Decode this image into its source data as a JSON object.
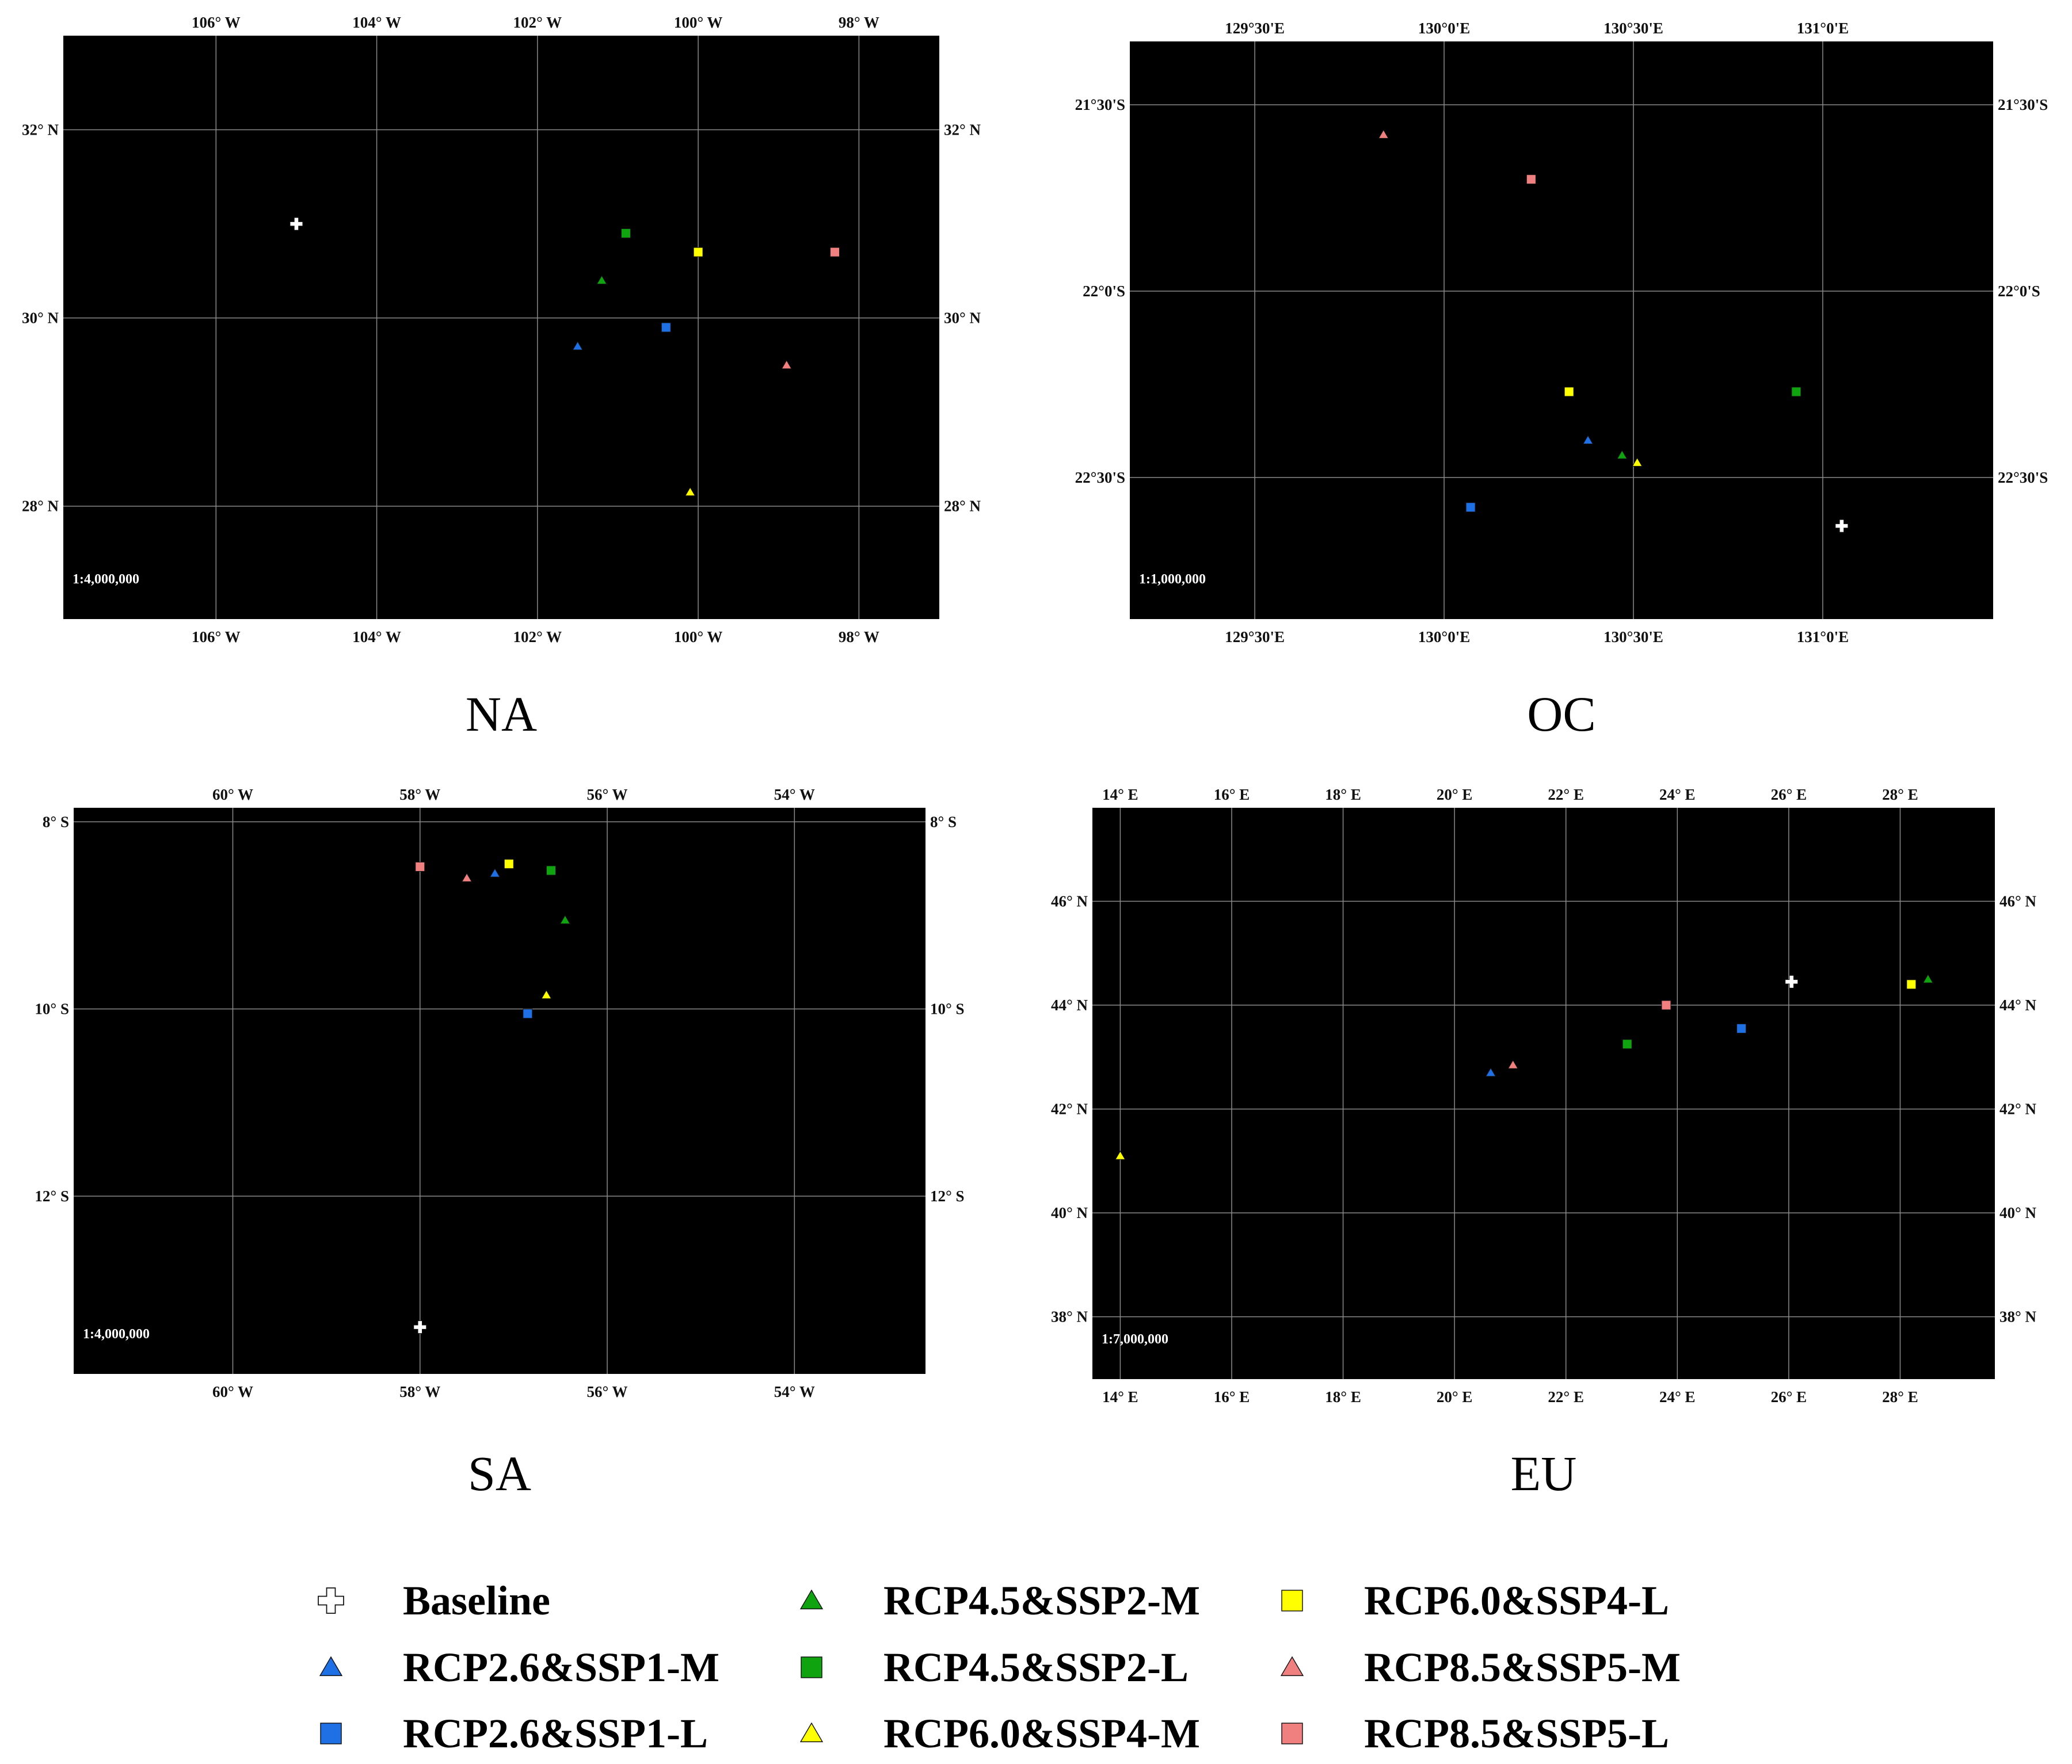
{
  "colors": {
    "Baseline": "#ffffff",
    "RCP2.6&SSP1-M": "#1f6fe5",
    "RCP2.6&SSP1-L": "#1f6fe5",
    "RCP4.5&SSP2-M": "#0fa30f",
    "RCP4.5&SSP2-L": "#0fa30f",
    "RCP6.0&SSP4-M": "#ffff00",
    "RCP6.0&SSP4-L": "#ffff00",
    "RCP8.5&SSP5-M": "#f08080",
    "RCP8.5&SSP5-L": "#f08080"
  },
  "legend": [
    {
      "label": "Baseline",
      "marker": "cross"
    },
    {
      "label": "RCP4.5&SSP2-M",
      "marker": "triangle"
    },
    {
      "label": "RCP6.0&SSP4-L",
      "marker": "square"
    },
    {
      "label": "RCP2.6&SSP1-M",
      "marker": "triangle"
    },
    {
      "label": "RCP4.5&SSP2-L",
      "marker": "square"
    },
    {
      "label": "RCP8.5&SSP5-M",
      "marker": "triangle"
    },
    {
      "label": "RCP2.6&SSP1-L",
      "marker": "square"
    },
    {
      "label": "RCP6.0&SSP4-M",
      "marker": "triangle"
    },
    {
      "label": "RCP8.5&SSP5-L",
      "marker": "square"
    }
  ],
  "chart_data": [
    {
      "type": "scatter",
      "title": "NA",
      "scale_text": "1:4,000,000",
      "background": "#000000",
      "grid": true,
      "xlim": [
        -107.9,
        -97.0
      ],
      "ylim": [
        26.8,
        33.0
      ],
      "xticks": [
        -106,
        -104,
        -102,
        -100,
        -98
      ],
      "xtick_labels": [
        "106° W",
        "104° W",
        "102° W",
        "100° W",
        "98° W"
      ],
      "yticks": [
        28,
        30,
        32
      ],
      "ytick_labels": [
        "28° N",
        "30° N",
        "32° N"
      ],
      "series": [
        {
          "name": "Baseline",
          "marker": "cross",
          "points": [
            [
              -105.0,
              31.0
            ]
          ]
        },
        {
          "name": "RCP2.6&SSP1-M",
          "marker": "triangle",
          "points": [
            [
              -101.5,
              29.7
            ]
          ]
        },
        {
          "name": "RCP2.6&SSP1-L",
          "marker": "square",
          "points": [
            [
              -100.4,
              29.9
            ]
          ]
        },
        {
          "name": "RCP4.5&SSP2-M",
          "marker": "triangle",
          "points": [
            [
              -101.2,
              30.4
            ]
          ]
        },
        {
          "name": "RCP4.5&SSP2-L",
          "marker": "square",
          "points": [
            [
              -100.9,
              30.9
            ]
          ]
        },
        {
          "name": "RCP6.0&SSP4-M",
          "marker": "triangle",
          "points": [
            [
              -100.1,
              28.15
            ]
          ]
        },
        {
          "name": "RCP6.0&SSP4-L",
          "marker": "square",
          "points": [
            [
              -100.0,
              30.7
            ]
          ]
        },
        {
          "name": "RCP8.5&SSP5-M",
          "marker": "triangle",
          "points": [
            [
              -98.9,
              29.5
            ]
          ]
        },
        {
          "name": "RCP8.5&SSP5-L",
          "marker": "square",
          "points": [
            [
              -98.3,
              30.7
            ]
          ]
        }
      ]
    },
    {
      "type": "scatter",
      "title": "OC",
      "scale_text": "1:1,000,000",
      "background": "#000000",
      "grid": true,
      "xlim": [
        129.17,
        131.45
      ],
      "ylim": [
        -22.88,
        -21.33
      ],
      "xticks": [
        129.5,
        130.0,
        130.5,
        131.0
      ],
      "xtick_labels": [
        "129°30'E",
        "130°0'E",
        "130°30'E",
        "131°0'E"
      ],
      "yticks": [
        -22.5,
        -22.0,
        -21.5
      ],
      "ytick_labels": [
        "22°30'S",
        "22°0'S",
        "21°30'S"
      ],
      "series": [
        {
          "name": "Baseline",
          "marker": "cross",
          "points": [
            [
              131.05,
              -22.63
            ]
          ]
        },
        {
          "name": "RCP2.6&SSP1-M",
          "marker": "triangle",
          "points": [
            [
              130.38,
              -22.4
            ]
          ]
        },
        {
          "name": "RCP2.6&SSP1-L",
          "marker": "square",
          "points": [
            [
              130.07,
              -22.58
            ]
          ]
        },
        {
          "name": "RCP4.5&SSP2-M",
          "marker": "triangle",
          "points": [
            [
              130.47,
              -22.44
            ]
          ]
        },
        {
          "name": "RCP4.5&SSP2-L",
          "marker": "square",
          "points": [
            [
              130.93,
              -22.27
            ]
          ]
        },
        {
          "name": "RCP6.0&SSP4-M",
          "marker": "triangle",
          "points": [
            [
              130.51,
              -22.46
            ]
          ]
        },
        {
          "name": "RCP6.0&SSP4-L",
          "marker": "square",
          "points": [
            [
              130.33,
              -22.27
            ]
          ]
        },
        {
          "name": "RCP8.5&SSP5-M",
          "marker": "triangle",
          "points": [
            [
              129.84,
              -21.58
            ]
          ]
        },
        {
          "name": "RCP8.5&SSP5-L",
          "marker": "square",
          "points": [
            [
              130.23,
              -21.7
            ]
          ]
        }
      ]
    },
    {
      "type": "scatter",
      "title": "SA",
      "scale_text": "1:4,000,000",
      "background": "#000000",
      "grid": true,
      "xlim": [
        -61.7,
        -52.6
      ],
      "ylim": [
        -13.9,
        -7.85
      ],
      "xticks": [
        -60,
        -58,
        -56,
        -54
      ],
      "xtick_labels": [
        "60° W",
        "58° W",
        "56° W",
        "54° W"
      ],
      "yticks": [
        -12,
        -10,
        -8
      ],
      "ytick_labels": [
        "12° S",
        "10° S",
        "8° S"
      ],
      "series": [
        {
          "name": "Baseline",
          "marker": "cross",
          "points": [
            [
              -58.0,
              -13.4
            ]
          ]
        },
        {
          "name": "RCP2.6&SSP1-M",
          "marker": "triangle",
          "points": [
            [
              -57.2,
              -8.55
            ]
          ]
        },
        {
          "name": "RCP2.6&SSP1-L",
          "marker": "square",
          "points": [
            [
              -56.85,
              -10.05
            ]
          ]
        },
        {
          "name": "RCP4.5&SSP2-M",
          "marker": "triangle",
          "points": [
            [
              -56.45,
              -9.05
            ]
          ]
        },
        {
          "name": "RCP4.5&SSP2-L",
          "marker": "square",
          "points": [
            [
              -56.6,
              -8.52
            ]
          ]
        },
        {
          "name": "RCP6.0&SSP4-M",
          "marker": "triangle",
          "points": [
            [
              -56.65,
              -9.85
            ]
          ]
        },
        {
          "name": "RCP6.0&SSP4-L",
          "marker": "square",
          "points": [
            [
              -57.05,
              -8.45
            ]
          ]
        },
        {
          "name": "RCP8.5&SSP5-M",
          "marker": "triangle",
          "points": [
            [
              -57.5,
              -8.6
            ]
          ]
        },
        {
          "name": "RCP8.5&SSP5-L",
          "marker": "square",
          "points": [
            [
              -58.0,
              -8.48
            ]
          ]
        }
      ]
    },
    {
      "type": "scatter",
      "title": "EU",
      "scale_text": "1:7,000,000",
      "background": "#000000",
      "grid": true,
      "xlim": [
        13.5,
        29.7
      ],
      "ylim": [
        36.8,
        47.8
      ],
      "xticks": [
        14,
        16,
        18,
        20,
        22,
        24,
        26,
        28
      ],
      "xtick_labels": [
        "14° E",
        "16° E",
        "18° E",
        "20° E",
        "22° E",
        "24° E",
        "26° E",
        "28° E"
      ],
      "yticks": [
        38,
        40,
        42,
        44,
        46
      ],
      "ytick_labels": [
        "38° N",
        "40° N",
        "42° N",
        "44° N",
        "46° N"
      ],
      "series": [
        {
          "name": "Baseline",
          "marker": "cross",
          "points": [
            [
              26.05,
              44.45
            ]
          ]
        },
        {
          "name": "RCP2.6&SSP1-M",
          "marker": "triangle",
          "points": [
            [
              20.65,
              42.7
            ]
          ]
        },
        {
          "name": "RCP2.6&SSP1-L",
          "marker": "square",
          "points": [
            [
              25.15,
              43.55
            ]
          ]
        },
        {
          "name": "RCP4.5&SSP2-M",
          "marker": "triangle",
          "points": [
            [
              28.5,
              44.5
            ]
          ]
        },
        {
          "name": "RCP4.5&SSP2-L",
          "marker": "square",
          "points": [
            [
              23.1,
              43.25
            ]
          ]
        },
        {
          "name": "RCP6.0&SSP4-M",
          "marker": "triangle",
          "points": [
            [
              14.0,
              41.1
            ]
          ]
        },
        {
          "name": "RCP6.0&SSP4-L",
          "marker": "square",
          "points": [
            [
              28.2,
              44.4
            ]
          ]
        },
        {
          "name": "RCP8.5&SSP5-M",
          "marker": "triangle",
          "points": [
            [
              21.05,
              42.85
            ]
          ]
        },
        {
          "name": "RCP8.5&SSP5-L",
          "marker": "square",
          "points": [
            [
              23.8,
              44.0
            ]
          ]
        }
      ]
    }
  ]
}
